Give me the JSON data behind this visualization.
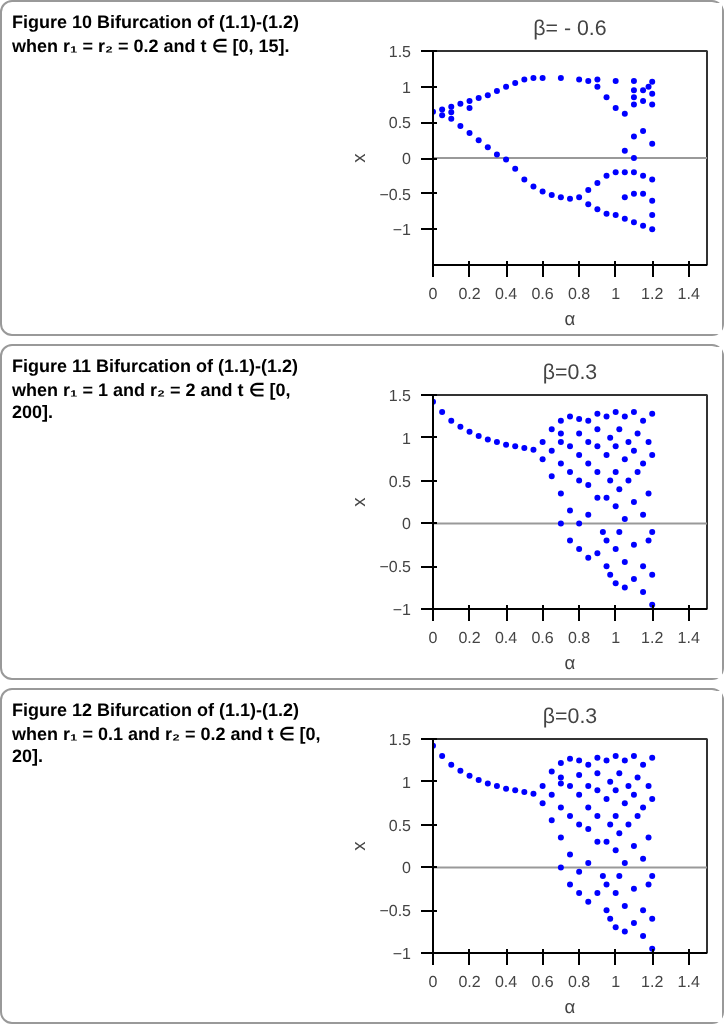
{
  "chart_data": [
    {
      "type": "scatter",
      "title": "β= - 0.6",
      "xlabel": "α",
      "ylabel": "x",
      "annotations": [
        "Figure 10  Bifurcation of (1.1)-(1.2) when r₁ = r₂ = 0.2 and t ∈ [0, 15]."
      ],
      "color": "#0000ff",
      "marker": "circle",
      "xlim": [
        0,
        1.5
      ],
      "ylim": [
        -1.5,
        1.5
      ],
      "xticks": [
        0,
        0.2,
        0.4,
        0.6,
        0.8,
        1,
        1.2,
        1.4
      ],
      "yticks": [
        -1,
        -0.5,
        0,
        0.5,
        1,
        1.5
      ],
      "ref_lines": [
        {
          "axis": "y",
          "value": 0,
          "color": "#999999"
        }
      ],
      "x": [
        0,
        0.05,
        0.1,
        0.15,
        0.2,
        0.25,
        0.3,
        0.35,
        0.4,
        0.45,
        0.5,
        0.55,
        0.6,
        0.7,
        0.8,
        0.9,
        1.0,
        1.1,
        1.2,
        0.85,
        0.9,
        0.95,
        1.0,
        1.05,
        1.1,
        1.15,
        1.18,
        1.1,
        1.15,
        1.2,
        1.1,
        1.2,
        0.05,
        0.1,
        0.15,
        0.2,
        0.25,
        0.3,
        0.35,
        0.4,
        0.45,
        0.5,
        0.55,
        0.6,
        0.65,
        0.7,
        0.75,
        0.8,
        0.85,
        0.9,
        0.95,
        1.0,
        1.05,
        1.1,
        1.15,
        0.85,
        0.9,
        0.95,
        1.0,
        1.05,
        1.1,
        1.15,
        1.2,
        1.05,
        1.1,
        1.15,
        1.2,
        1.1,
        1.15,
        1.2,
        1.1,
        1.05,
        1.2,
        1.2,
        0.1,
        0.2
      ],
      "values": [
        0.65,
        0.68,
        0.72,
        0.76,
        0.8,
        0.84,
        0.88,
        0.94,
        1.0,
        1.05,
        1.1,
        1.12,
        1.12,
        1.12,
        1.1,
        1.1,
        1.08,
        1.08,
        1.07,
        1.08,
        1.0,
        0.85,
        0.7,
        0.62,
        0.75,
        0.95,
        1.0,
        0.95,
        0.8,
        0.9,
        0.85,
        0.75,
        0.6,
        0.55,
        0.45,
        0.35,
        0.25,
        0.15,
        0.05,
        -0.02,
        -0.15,
        -0.3,
        -0.4,
        -0.47,
        -0.52,
        -0.55,
        -0.57,
        -0.55,
        -0.45,
        -0.35,
        -0.25,
        -0.2,
        -0.2,
        -0.2,
        -0.25,
        -0.65,
        -0.72,
        -0.78,
        -0.8,
        -0.85,
        -0.9,
        -0.95,
        -1.0,
        0.1,
        0.3,
        0.38,
        0.2,
        0.0,
        -0.5,
        -0.6,
        -0.5,
        -0.55,
        -0.3,
        -0.8,
        0.64,
        0.7
      ]
    },
    {
      "type": "scatter",
      "title": "β=0.3",
      "xlabel": "α",
      "ylabel": "x",
      "annotations": [
        "Figure 11  Bifurcation of (1.1)-(1.2) when r₁ = 1 and r₂ = 2 and t ∈ [0, 200]."
      ],
      "color": "#0000ff",
      "marker": "circle",
      "xlim": [
        0,
        1.5
      ],
      "ylim": [
        -1,
        1.5
      ],
      "xticks": [
        0,
        0.2,
        0.4,
        0.6,
        0.8,
        1,
        1.2,
        1.4
      ],
      "yticks": [
        -1,
        -0.5,
        0,
        0.5,
        1,
        1.5
      ],
      "ref_lines": [
        {
          "axis": "y",
          "value": 0,
          "color": "#999999"
        }
      ],
      "x": [
        0,
        0.05,
        0.1,
        0.15,
        0.2,
        0.25,
        0.3,
        0.35,
        0.4,
        0.45,
        0.5,
        0.55,
        0.6,
        0.65,
        0.7,
        0.75,
        0.8,
        0.85,
        0.9,
        0.6,
        0.65,
        0.7,
        0.75,
        0.8,
        0.85,
        0.9,
        0.65,
        0.7,
        0.75,
        0.8,
        0.85,
        0.9,
        0.7,
        0.75,
        0.8,
        0.85,
        0.9,
        0.7,
        0.75,
        0.8,
        0.85,
        0.9,
        0.93,
        0.7,
        0.8,
        0.85,
        0.9,
        0.95,
        0.95,
        0.95,
        0.95,
        0.95,
        0.97,
        0.97,
        0.97,
        1.0,
        1.0,
        1.0,
        1.0,
        1.0,
        1.0,
        1.02,
        1.02,
        1.02,
        1.05,
        1.05,
        1.05,
        1.05,
        1.05,
        1.07,
        1.07,
        1.1,
        1.1,
        1.1,
        1.1,
        1.1,
        1.12,
        1.12,
        1.15,
        1.15,
        1.15,
        1.15,
        1.15,
        1.18,
        1.18,
        1.18,
        1.2,
        1.2,
        1.2,
        1.2,
        1.2
      ],
      "values": [
        1.42,
        1.3,
        1.2,
        1.13,
        1.07,
        1.02,
        0.98,
        0.95,
        0.92,
        0.9,
        0.88,
        0.86,
        0.95,
        1.1,
        1.2,
        1.25,
        1.22,
        1.2,
        1.28,
        0.75,
        0.55,
        0.35,
        0.15,
        0.0,
        0.1,
        0.3,
        0.85,
        0.95,
        0.9,
        0.8,
        0.7,
        0.9,
        0.7,
        0.6,
        0.5,
        0.45,
        0.6,
        0.0,
        -0.2,
        -0.3,
        -0.4,
        -0.35,
        -0.1,
        1.05,
        1.05,
        0.95,
        1.1,
        1.25,
        0.8,
        0.3,
        -0.2,
        -0.5,
        1.0,
        0.5,
        -0.6,
        1.3,
        0.9,
        0.6,
        0.2,
        -0.3,
        -0.7,
        1.1,
        0.4,
        -0.1,
        1.25,
        0.75,
        0.05,
        -0.45,
        -0.75,
        0.95,
        0.5,
        1.3,
        0.85,
        0.25,
        -0.25,
        -0.65,
        1.05,
        0.6,
        1.2,
        0.7,
        0.1,
        -0.5,
        -0.8,
        0.95,
        0.35,
        -0.2,
        1.28,
        0.8,
        -0.1,
        -0.6,
        -0.95
      ]
    },
    {
      "type": "scatter",
      "title": "β=0.3",
      "xlabel": "α",
      "ylabel": "x",
      "annotations": [
        "Figure 12  Bifurcation of (1.1)-(1.2) when r₁ = 0.1 and r₂ = 0.2 and t ∈ [0, 20]."
      ],
      "color": "#0000ff",
      "marker": "circle",
      "xlim": [
        0,
        1.5
      ],
      "ylim": [
        -1,
        1.5
      ],
      "xticks": [
        0,
        0.2,
        0.4,
        0.6,
        0.8,
        1,
        1.2,
        1.4
      ],
      "yticks": [
        -1,
        -0.5,
        0,
        0.5,
        1,
        1.5
      ],
      "ref_lines": [
        {
          "axis": "y",
          "value": 0,
          "color": "#999999"
        }
      ],
      "x": [
        0,
        0.05,
        0.1,
        0.15,
        0.2,
        0.25,
        0.3,
        0.35,
        0.4,
        0.45,
        0.5,
        0.55,
        0.6,
        0.65,
        0.7,
        0.75,
        0.8,
        0.85,
        0.9,
        0.6,
        0.65,
        0.7,
        0.75,
        0.8,
        0.85,
        0.9,
        0.65,
        0.7,
        0.75,
        0.8,
        0.85,
        0.9,
        0.7,
        0.75,
        0.8,
        0.85,
        0.9,
        0.7,
        0.75,
        0.8,
        0.85,
        0.9,
        0.93,
        0.7,
        0.8,
        0.85,
        0.9,
        0.95,
        0.95,
        0.95,
        0.95,
        0.95,
        0.97,
        0.97,
        0.97,
        1.0,
        1.0,
        1.0,
        1.0,
        1.0,
        1.0,
        1.02,
        1.02,
        1.02,
        1.05,
        1.05,
        1.05,
        1.05,
        1.05,
        1.07,
        1.07,
        1.1,
        1.1,
        1.1,
        1.1,
        1.1,
        1.12,
        1.12,
        1.15,
        1.15,
        1.15,
        1.15,
        1.15,
        1.18,
        1.18,
        1.18,
        1.2,
        1.2,
        1.2,
        1.2,
        1.2
      ],
      "values": [
        1.42,
        1.3,
        1.2,
        1.13,
        1.07,
        1.02,
        0.98,
        0.95,
        0.92,
        0.9,
        0.88,
        0.86,
        0.95,
        1.12,
        1.22,
        1.27,
        1.25,
        1.2,
        1.28,
        0.75,
        0.55,
        0.35,
        0.15,
        -0.05,
        0.05,
        0.3,
        0.85,
        0.98,
        0.95,
        0.85,
        0.7,
        0.9,
        0.7,
        0.6,
        0.5,
        0.45,
        0.6,
        0.0,
        -0.2,
        -0.3,
        -0.4,
        -0.3,
        -0.1,
        1.05,
        1.08,
        0.95,
        1.1,
        1.25,
        0.8,
        0.3,
        -0.2,
        -0.5,
        1.0,
        0.5,
        -0.6,
        1.3,
        0.9,
        0.6,
        0.2,
        -0.3,
        -0.7,
        1.1,
        0.4,
        -0.1,
        1.25,
        0.75,
        0.05,
        -0.45,
        -0.75,
        0.95,
        0.5,
        1.3,
        0.85,
        0.25,
        -0.25,
        -0.65,
        1.05,
        0.6,
        1.2,
        0.7,
        0.1,
        -0.5,
        -0.8,
        0.95,
        0.35,
        -0.2,
        1.28,
        0.8,
        -0.1,
        -0.6,
        -0.95
      ]
    }
  ]
}
